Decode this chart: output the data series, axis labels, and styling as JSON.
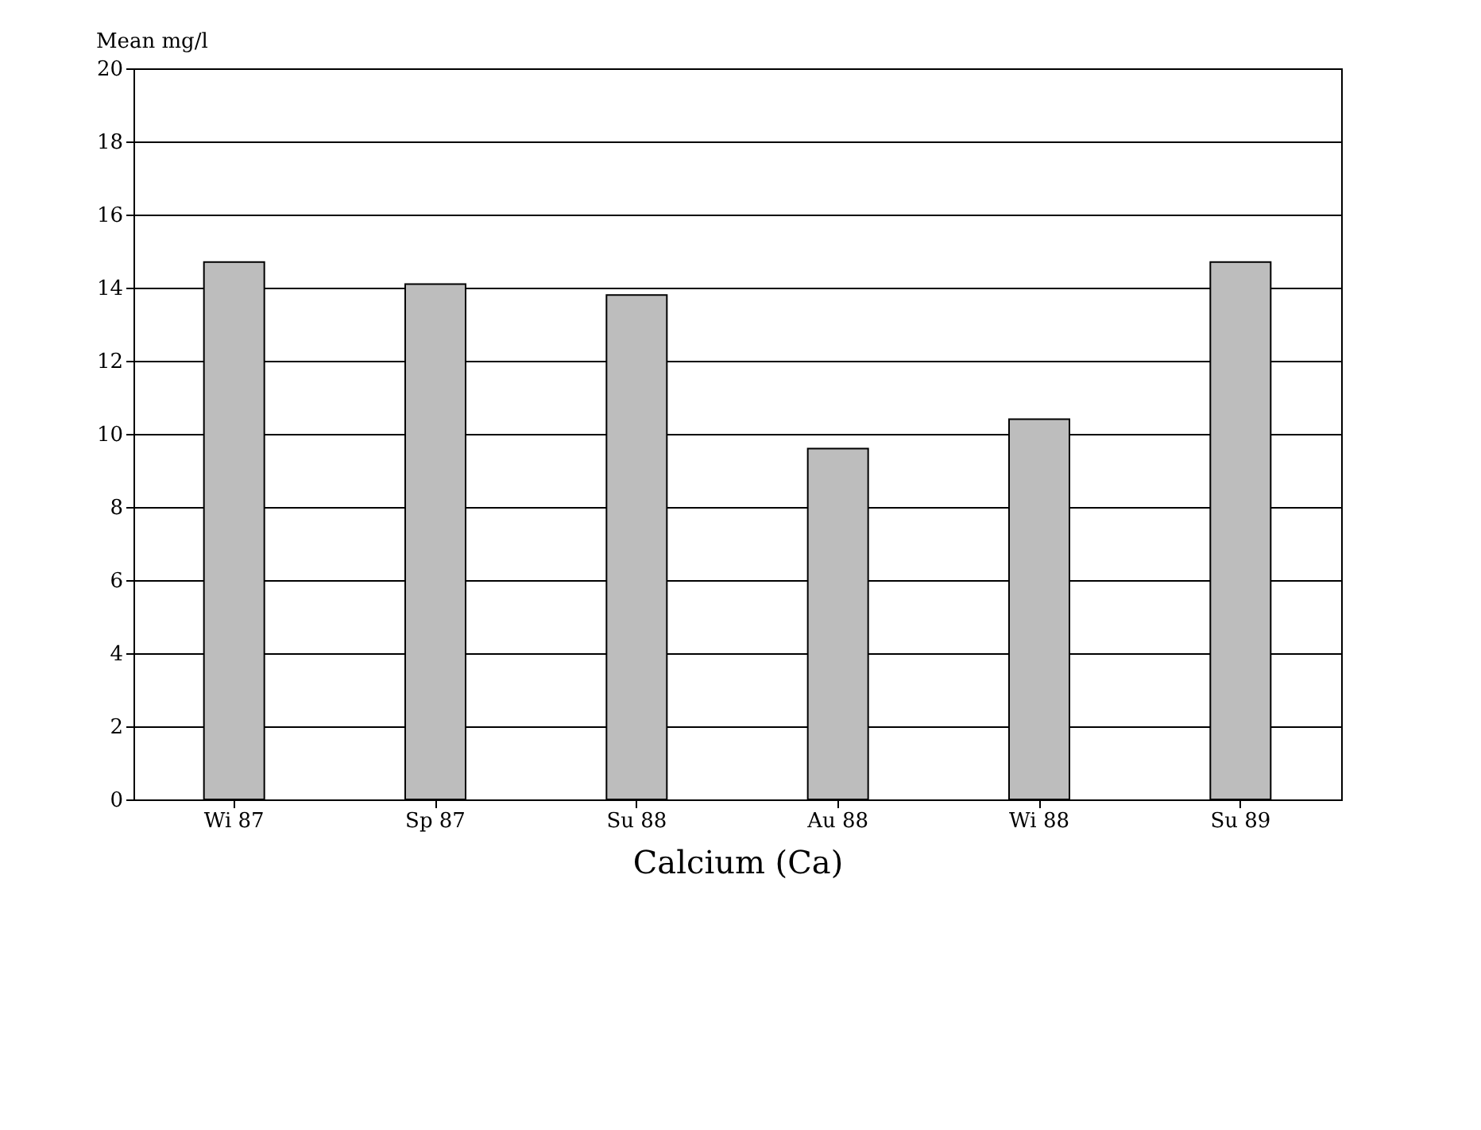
{
  "chart_data": {
    "type": "bar",
    "ylabel": "Mean mg/l",
    "xlabel": "Calcium (Ca)",
    "categories": [
      "Wi 87",
      "Sp 87",
      "Su 88",
      "Au 88",
      "Wi 88",
      "Su 89"
    ],
    "values": [
      14.7,
      14.1,
      13.8,
      9.6,
      10.4,
      14.7
    ],
    "color": "#bdbdbd",
    "ylim": [
      0,
      20
    ],
    "yticks": [
      0,
      2,
      4,
      6,
      8,
      10,
      12,
      14,
      16,
      18,
      20
    ],
    "grid": "y"
  }
}
